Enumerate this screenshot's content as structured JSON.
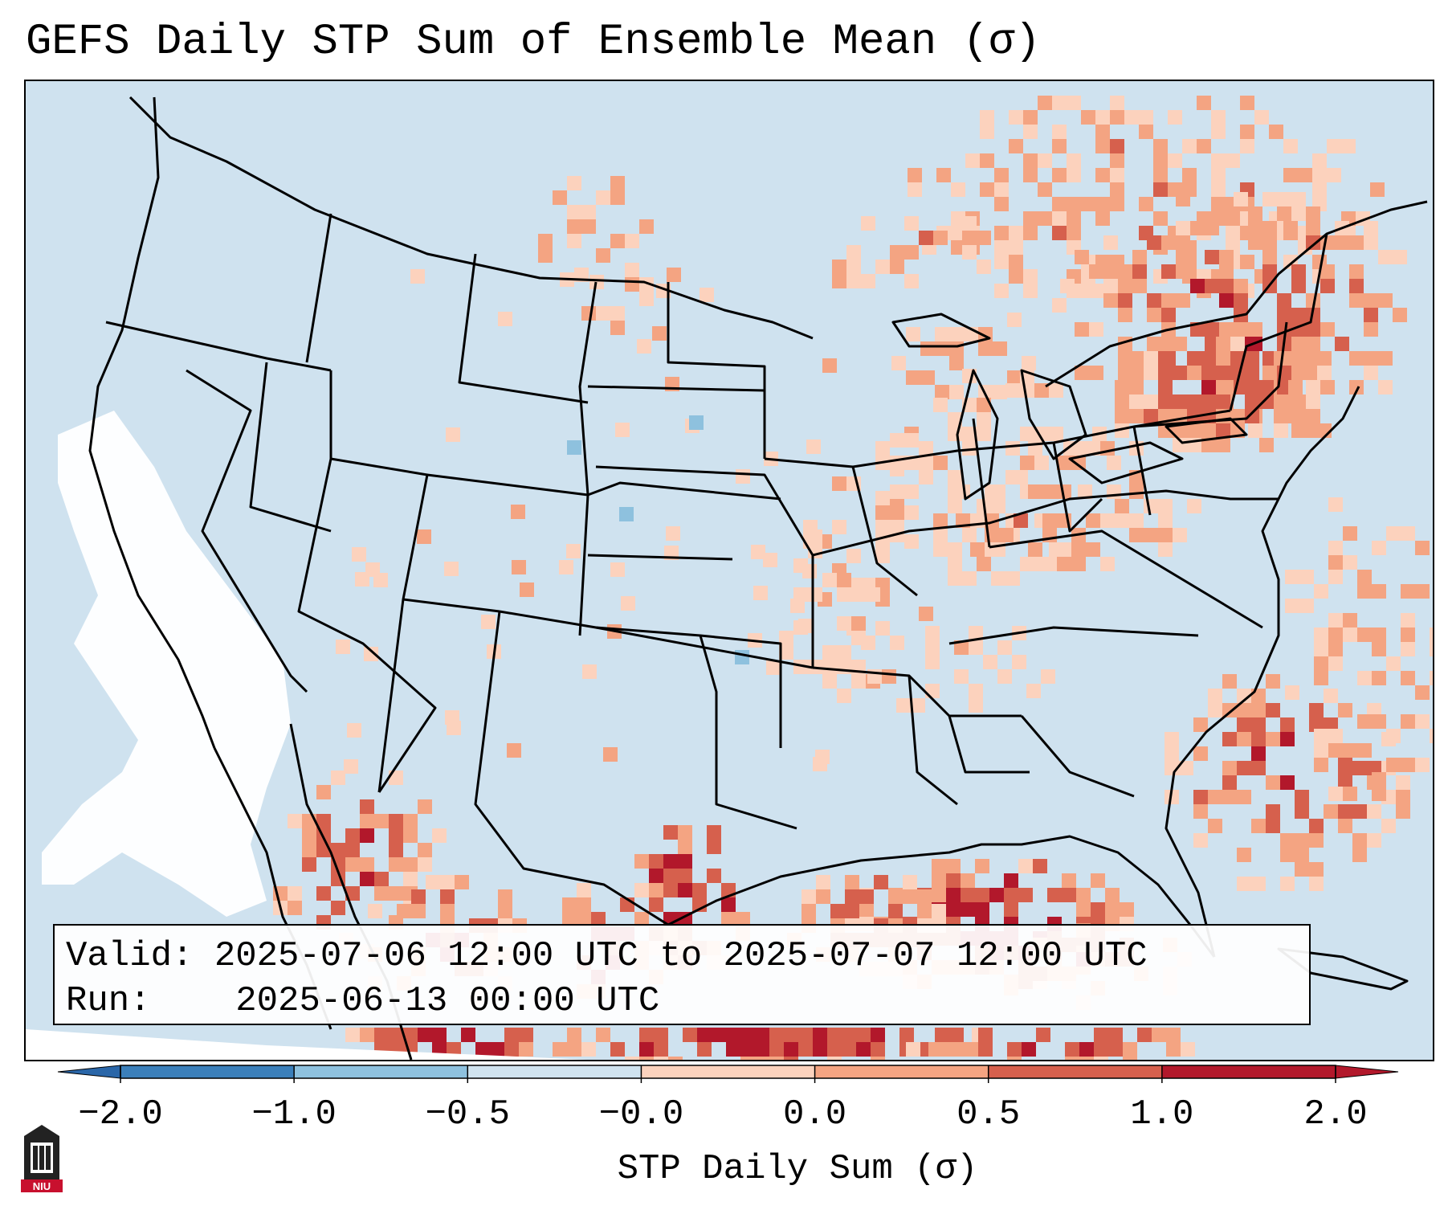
{
  "title": "GEFS Daily STP Sum of Ensemble Mean (σ)",
  "info": {
    "valid_label": "Valid:",
    "valid_value": "2025-07-06 12:00 UTC to 2025-07-07 12:00 UTC",
    "run_label": "Run:",
    "run_value": "2025-06-13 00:00 UTC"
  },
  "colorbar": {
    "label": "STP Daily Sum (σ)",
    "ticks": [
      "−2.0",
      "−1.0",
      "−0.5",
      "−0.0",
      "0.0",
      "0.5",
      "1.0",
      "2.0"
    ],
    "colors": [
      "#3b7fba",
      "#8ec1de",
      "#d0e3ef",
      "#f7f7f7",
      "#fcd2bd",
      "#f4a482",
      "#d6604d",
      "#b2182b"
    ],
    "extend_low_color": "#2a66a8",
    "extend_high_color": "#b2182b"
  },
  "map_colors": {
    "ocean_land_bg": "#cfe2ef",
    "near_zero": "#ffffff",
    "light_red": "#fcd2bd",
    "mid_red": "#f4a482",
    "red": "#d6604d",
    "dark_red": "#b2182b",
    "light_blue": "#8ec1de"
  },
  "logo": {
    "text": "NIU"
  }
}
